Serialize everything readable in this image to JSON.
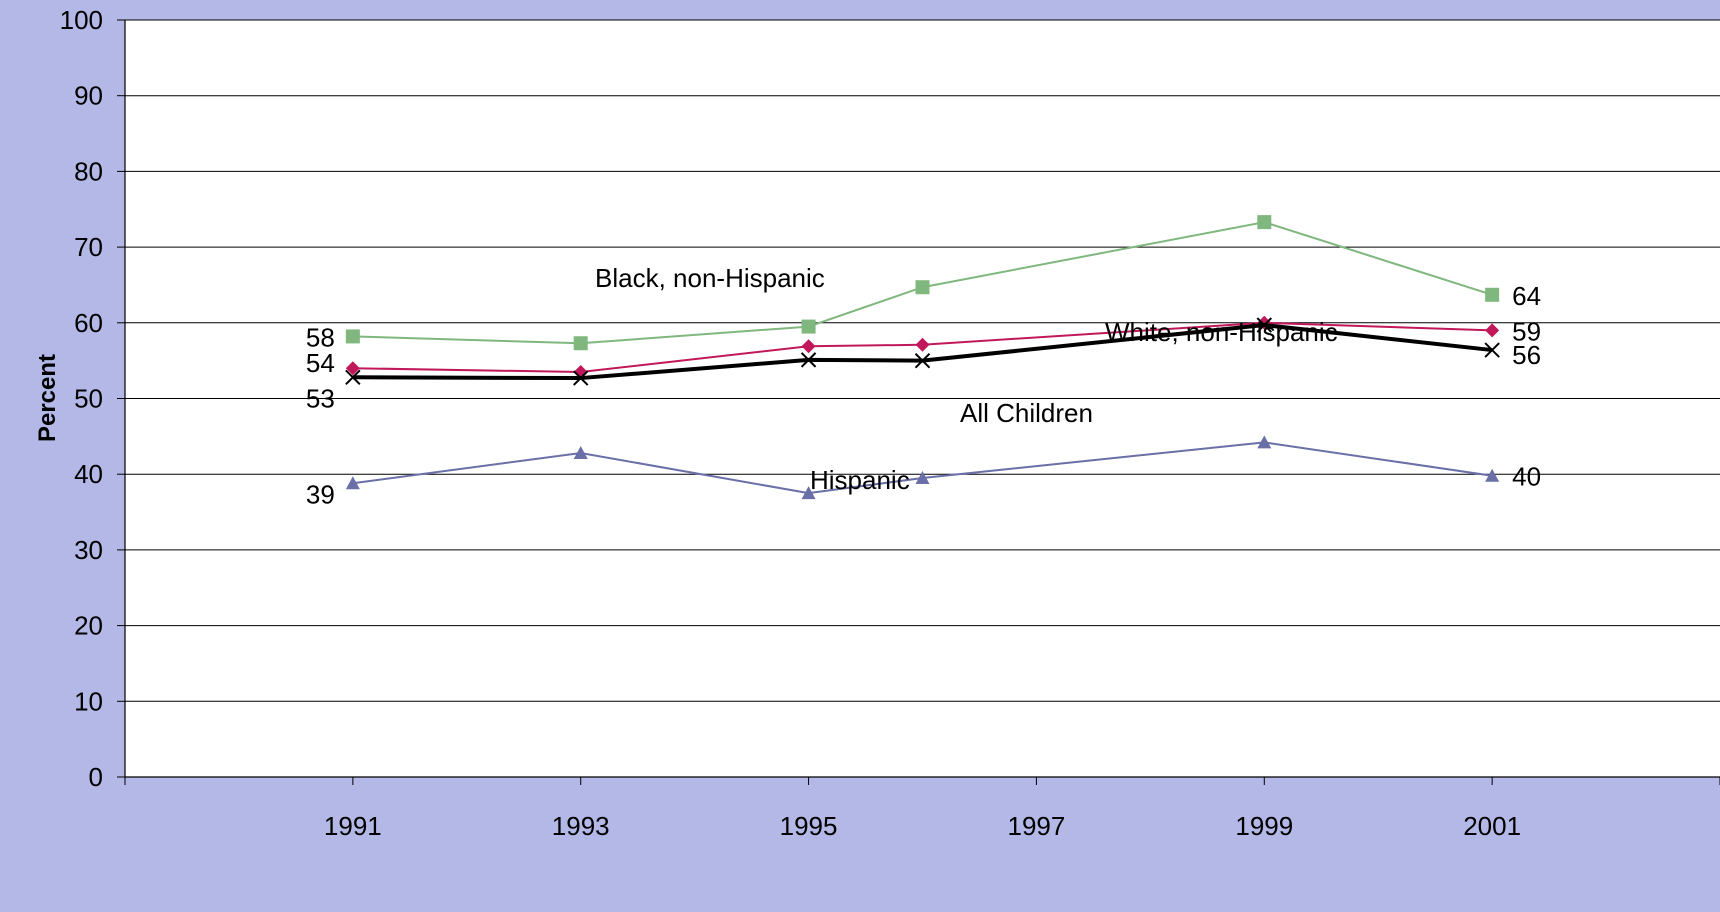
{
  "chart_data": {
    "type": "line",
    "ylabel": "Percent",
    "xlabel": "",
    "ylim": [
      0,
      100
    ],
    "yticks": [
      0,
      10,
      20,
      30,
      40,
      50,
      60,
      70,
      80,
      90,
      100
    ],
    "xticks": [
      1991,
      1993,
      1995,
      1997,
      1999,
      2001
    ],
    "xlim": [
      1989,
      2003
    ],
    "grid": "horizontal",
    "background_color": "#b3b8e6",
    "plot_background": "#ffffff",
    "series": [
      {
        "name": "Black, non-Hispanic",
        "color": "#7fb77e",
        "marker": "square",
        "stroke": "thin",
        "x": [
          1991,
          1993,
          1995,
          1996,
          1999,
          2001
        ],
        "values": [
          58.2,
          57.3,
          59.5,
          64.7,
          73.3,
          63.7
        ],
        "data_labels": {
          "first": "58",
          "last": "64"
        }
      },
      {
        "name": "White, non-Hispanic",
        "color": "#c0185a",
        "marker": "diamond",
        "stroke": "thin",
        "x": [
          1991,
          1993,
          1995,
          1996,
          1999,
          2001
        ],
        "values": [
          54.0,
          53.5,
          56.9,
          57.1,
          60.0,
          59.0
        ],
        "data_labels": {
          "first": "54",
          "last": "59"
        }
      },
      {
        "name": "All Children",
        "color": "#000000",
        "marker": "x",
        "stroke": "thick",
        "x": [
          1991,
          1993,
          1995,
          1996,
          1999,
          2001
        ],
        "values": [
          52.8,
          52.7,
          55.1,
          55.0,
          59.7,
          56.4
        ],
        "data_labels": {
          "first": "53",
          "last": "56"
        }
      },
      {
        "name": "Hispanic",
        "color": "#6a6fa8",
        "marker": "triangle",
        "stroke": "thin",
        "x": [
          1991,
          1993,
          1995,
          1996,
          1999,
          2001
        ],
        "values": [
          38.8,
          42.8,
          37.5,
          39.5,
          44.2,
          39.8
        ],
        "data_labels": {
          "first": "39",
          "last": "40"
        }
      }
    ]
  }
}
